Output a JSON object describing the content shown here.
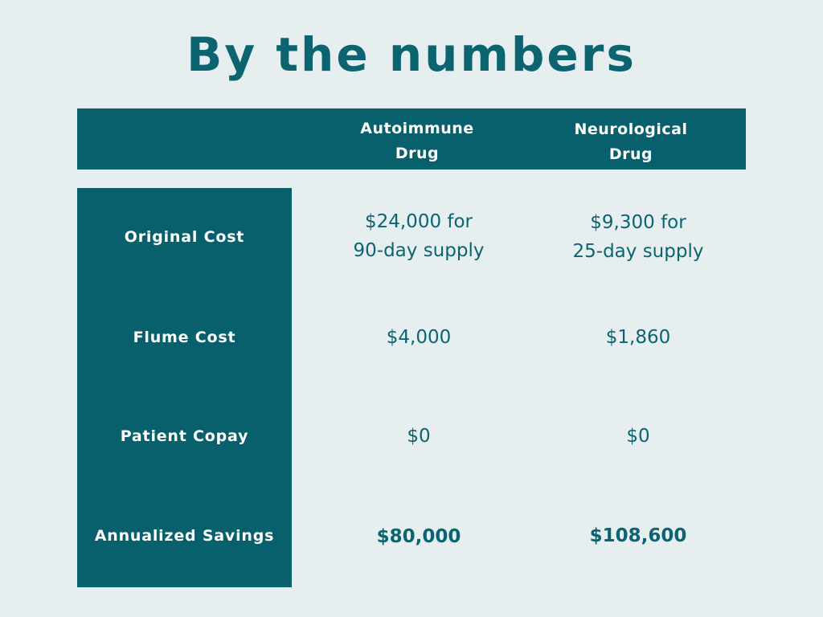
{
  "title": "By the numbers",
  "columns": [
    "Autoimmune\nDrug",
    "Neurological\nDrug"
  ],
  "rows": [
    {
      "label": "Original Cost",
      "values": [
        "$24,000 for\n90-day supply",
        "$9,300 for\n25-day supply"
      ]
    },
    {
      "label": "Flume Cost",
      "values": [
        "$4,000",
        "$1,860"
      ]
    },
    {
      "label": "Patient Copay",
      "values": [
        "$0",
        "$0"
      ]
    },
    {
      "label": "Annualized Savings",
      "values": [
        "$80,000",
        "$108,600"
      ]
    }
  ],
  "colors": {
    "background": "#e6eef0",
    "accent": "#07606c",
    "text": "#0b6470",
    "header_text": "#ffffff"
  }
}
